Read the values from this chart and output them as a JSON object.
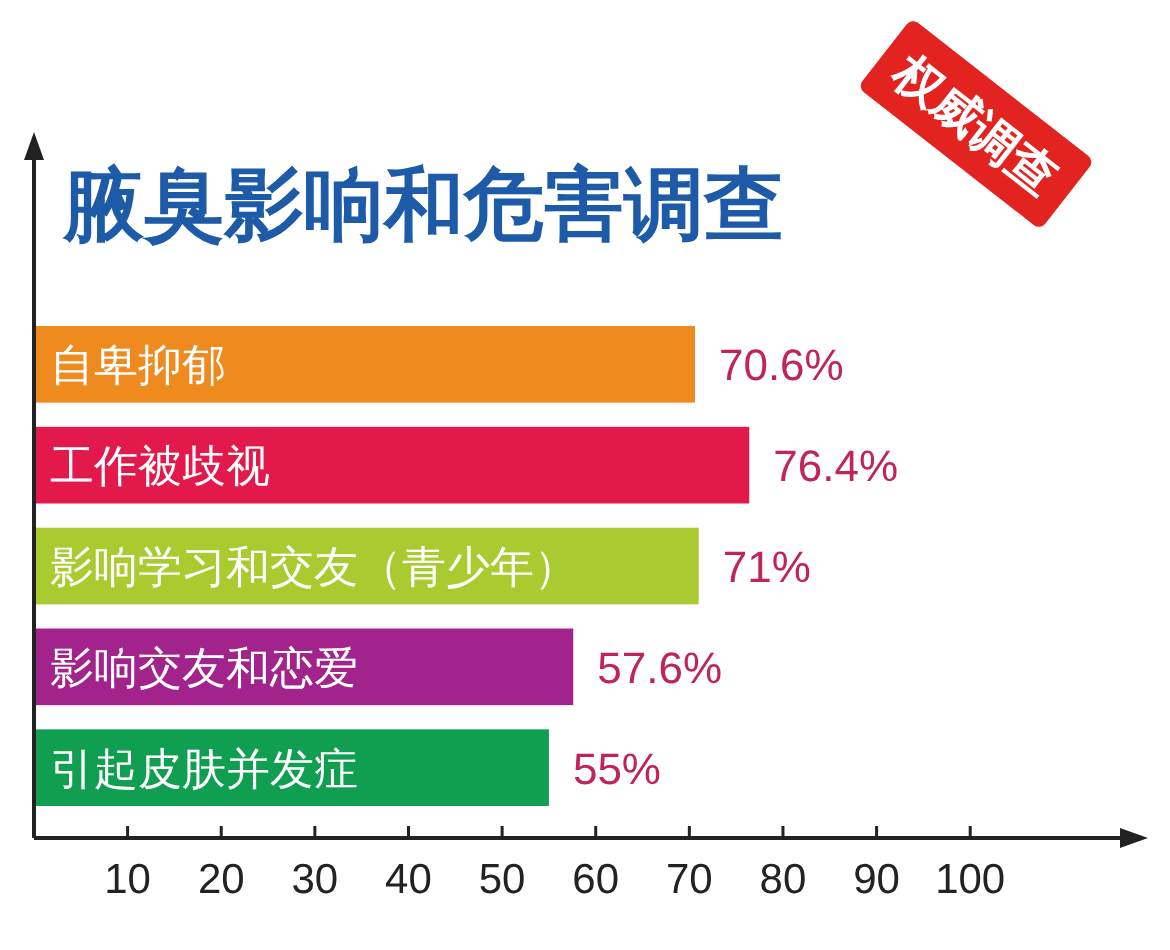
{
  "chart_data": {
    "type": "bar",
    "orientation": "horizontal",
    "title": "腋臭影响和危害调查",
    "categories": [
      "自卑抑郁",
      "工作被歧视",
      "影响学习和交友（青少年）",
      "影响交友和恋爱",
      "引起皮肤并发症"
    ],
    "values": [
      70.6,
      76.4,
      71,
      57.6,
      55
    ],
    "colors": [
      "#ef8a1f",
      "#e4194b",
      "#a9cb2f",
      "#a1238b",
      "#109e51"
    ],
    "value_labels": [
      "70.6%",
      "76.4%",
      "71%",
      "57.6%",
      "55%"
    ],
    "xlim": [
      0,
      116
    ],
    "xticks": [
      10,
      20,
      30,
      40,
      50,
      60,
      70,
      80,
      90,
      100
    ],
    "grid": false,
    "annotations": [
      "权威调查"
    ]
  }
}
